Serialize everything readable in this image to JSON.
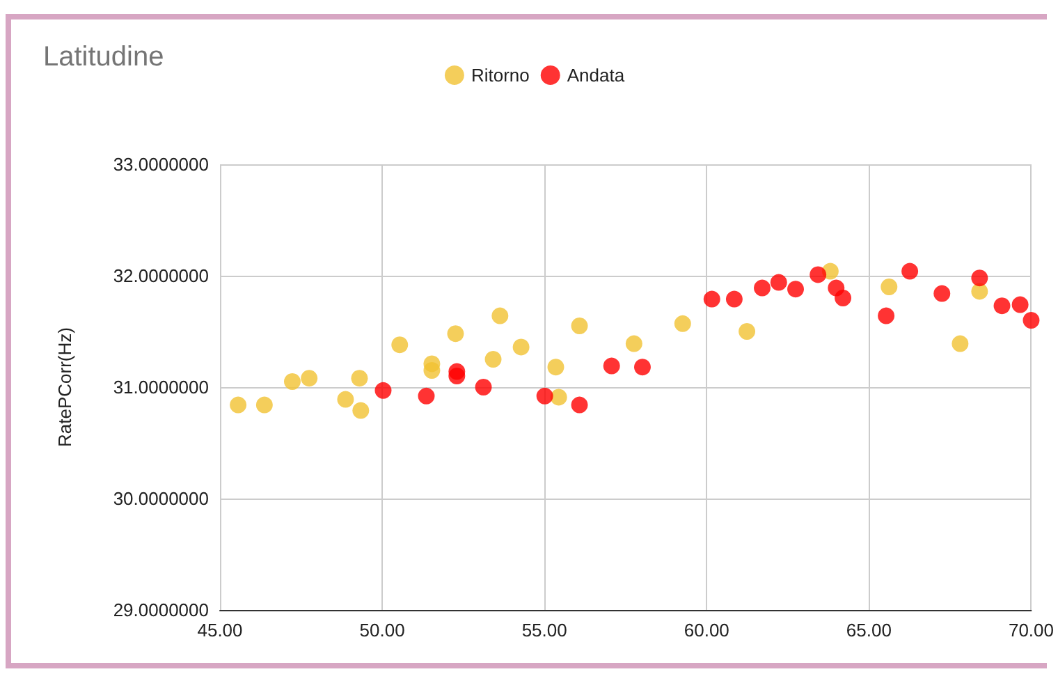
{
  "chart_data": {
    "type": "scatter",
    "title": "Latitudine",
    "ylabel": "RatePCorr(Hz)",
    "xlim": [
      45,
      70
    ],
    "ylim": [
      29,
      33
    ],
    "xticks": [
      {
        "value": 45,
        "label": "45.00"
      },
      {
        "value": 50,
        "label": "50.00"
      },
      {
        "value": 55,
        "label": "55.00"
      },
      {
        "value": 60,
        "label": "60.00"
      },
      {
        "value": 65,
        "label": "65.00"
      },
      {
        "value": 70,
        "label": "70.00"
      }
    ],
    "yticks": [
      {
        "value": 29,
        "label": "29.0000000"
      },
      {
        "value": 30,
        "label": "30.0000000"
      },
      {
        "value": 31,
        "label": "31.0000000"
      },
      {
        "value": 32,
        "label": "32.0000000"
      },
      {
        "value": 33,
        "label": "33.0000000"
      }
    ],
    "grid": true,
    "legend": "top",
    "marker": "circle",
    "series": [
      {
        "name": "Ritorno",
        "color": "#f1c232",
        "x": [
          45.56,
          46.37,
          47.23,
          47.75,
          48.87,
          49.34,
          49.3,
          50.54,
          51.53,
          51.53,
          52.26,
          53.42,
          53.63,
          54.28,
          55.35,
          55.44,
          56.08,
          57.76,
          59.26,
          61.24,
          63.81,
          65.62,
          67.81,
          68.41
        ],
        "values": [
          30.84,
          30.84,
          31.05,
          31.08,
          30.89,
          30.79,
          31.08,
          31.38,
          31.21,
          31.15,
          31.48,
          31.25,
          31.64,
          31.36,
          31.18,
          30.91,
          31.55,
          31.39,
          31.57,
          31.5,
          32.04,
          31.9,
          31.39,
          31.86
        ]
      },
      {
        "name": "Andata",
        "color": "#ff0000",
        "x": [
          50.03,
          51.36,
          52.3,
          52.3,
          53.12,
          55.01,
          56.08,
          57.07,
          58.02,
          60.16,
          60.85,
          61.71,
          62.22,
          62.74,
          63.43,
          63.99,
          64.2,
          65.53,
          66.26,
          67.25,
          68.41,
          69.1,
          69.66,
          70
        ],
        "values": [
          30.97,
          30.92,
          31.14,
          31.1,
          31,
          30.92,
          30.84,
          31.19,
          31.18,
          31.79,
          31.79,
          31.89,
          31.94,
          31.88,
          32.01,
          31.89,
          31.8,
          31.64,
          32.04,
          31.84,
          31.98,
          31.73,
          31.74,
          31.6
        ]
      }
    ]
  }
}
